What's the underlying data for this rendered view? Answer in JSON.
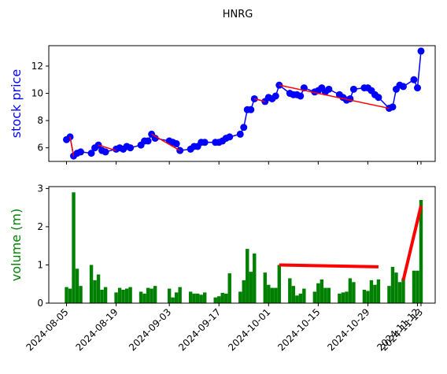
{
  "chart_data": {
    "title": "HNRG",
    "x": [
      "2024-08-05",
      "2024-08-06",
      "2024-08-07",
      "2024-08-08",
      "2024-08-09",
      "2024-08-12",
      "2024-08-13",
      "2024-08-14",
      "2024-08-15",
      "2024-08-16",
      "2024-08-19",
      "2024-08-20",
      "2024-08-21",
      "2024-08-22",
      "2024-08-23",
      "2024-08-26",
      "2024-08-27",
      "2024-08-28",
      "2024-08-29",
      "2024-08-30",
      "2024-09-03",
      "2024-09-04",
      "2024-09-05",
      "2024-09-06",
      "2024-09-09",
      "2024-09-10",
      "2024-09-11",
      "2024-09-12",
      "2024-09-13",
      "2024-09-16",
      "2024-09-17",
      "2024-09-18",
      "2024-09-19",
      "2024-09-20",
      "2024-09-23",
      "2024-09-24",
      "2024-09-25",
      "2024-09-26",
      "2024-09-27",
      "2024-09-30",
      "2024-10-01",
      "2024-10-02",
      "2024-10-03",
      "2024-10-04",
      "2024-10-07",
      "2024-10-08",
      "2024-10-09",
      "2024-10-10",
      "2024-10-11",
      "2024-10-14",
      "2024-10-15",
      "2024-10-16",
      "2024-10-17",
      "2024-10-18",
      "2024-10-21",
      "2024-10-22",
      "2024-10-23",
      "2024-10-24",
      "2024-10-25",
      "2024-10-28",
      "2024-10-29",
      "2024-10-30",
      "2024-10-31",
      "2024-11-01",
      "2024-11-04",
      "2024-11-05",
      "2024-11-06",
      "2024-11-07",
      "2024-11-08",
      "2024-11-11",
      "2024-11-12",
      "2024-11-13"
    ],
    "xlim": [
      "2024-07-31",
      "2024-11-17"
    ],
    "xticks": [
      "2024-08-05",
      "2024-08-19",
      "2024-09-03",
      "2024-09-17",
      "2024-10-01",
      "2024-10-15",
      "2024-10-29",
      "2024-11-12",
      "2024-11-13"
    ],
    "panels": [
      {
        "type": "line",
        "ylabel": "stock price",
        "ylabel_color": "#0000ff",
        "color": "#0000ff",
        "ylim": [
          5,
          13.5
        ],
        "yticks": [
          6,
          8,
          10,
          12
        ],
        "values": [
          6.6,
          6.8,
          5.4,
          5.6,
          5.7,
          5.6,
          6.0,
          6.2,
          5.8,
          5.7,
          5.9,
          6.0,
          5.9,
          6.1,
          6.0,
          6.2,
          6.5,
          6.5,
          7.0,
          6.7,
          6.5,
          6.4,
          6.3,
          5.8,
          5.9,
          6.1,
          6.1,
          6.4,
          6.4,
          6.4,
          6.4,
          6.5,
          6.7,
          6.8,
          7.0,
          7.5,
          8.8,
          8.8,
          9.6,
          9.4,
          9.7,
          9.6,
          9.8,
          10.6,
          10.0,
          9.9,
          9.9,
          9.8,
          10.4,
          10.1,
          10.2,
          10.4,
          10.1,
          10.3,
          9.9,
          9.7,
          9.5,
          9.6,
          10.3,
          10.4,
          10.4,
          10.2,
          9.9,
          9.7,
          8.9,
          9.0,
          10.3,
          10.6,
          10.5,
          11.0,
          10.4,
          13.1
        ],
        "segment_color": "#ff0000",
        "segments": [
          {
            "x": [
              "2024-08-06",
              "2024-08-07"
            ],
            "values": [
              6.8,
              5.4
            ]
          },
          {
            "x": [
              "2024-08-14",
              "2024-08-19"
            ],
            "values": [
              6.2,
              5.8
            ]
          },
          {
            "x": [
              "2024-08-29",
              "2024-09-06"
            ],
            "values": [
              7.0,
              5.8
            ]
          },
          {
            "x": [
              "2024-09-27",
              "2024-09-30"
            ],
            "values": [
              9.6,
              9.4
            ]
          },
          {
            "x": [
              "2024-10-04",
              "2024-11-04"
            ],
            "values": [
              10.6,
              8.9
            ]
          }
        ]
      },
      {
        "type": "bar",
        "ylabel": "volume (m)",
        "ylabel_color": "#008000",
        "color": "#008000",
        "ylim": [
          0,
          3.05
        ],
        "yticks": [
          0,
          1,
          2,
          3
        ],
        "values": [
          0.42,
          0.38,
          2.9,
          0.9,
          0.45,
          1.0,
          0.6,
          0.75,
          0.35,
          0.42,
          0.28,
          0.4,
          0.35,
          0.38,
          0.42,
          0.3,
          0.25,
          0.4,
          0.38,
          0.45,
          0.38,
          0.15,
          0.28,
          0.42,
          0.3,
          0.25,
          0.25,
          0.22,
          0.28,
          0.15,
          0.18,
          0.27,
          0.25,
          0.78,
          0.3,
          0.6,
          1.42,
          0.82,
          1.3,
          0.8,
          0.48,
          0.4,
          0.4,
          1.0,
          0.65,
          0.45,
          0.2,
          0.25,
          0.38,
          0.3,
          0.52,
          0.62,
          0.4,
          0.4,
          0.25,
          0.28,
          0.3,
          0.65,
          0.55,
          0.35,
          0.32,
          0.6,
          0.48,
          0.62,
          0.45,
          0.95,
          0.8,
          0.55,
          0.65,
          0.85,
          0.85,
          2.7
        ],
        "segment_color": "#ff0000",
        "segments": [
          {
            "x": [
              "2024-10-04",
              "2024-11-01"
            ],
            "values": [
              1.0,
              0.95
            ]
          },
          {
            "x": [
              "2024-11-08",
              "2024-11-13"
            ],
            "values": [
              0.6,
              2.55
            ]
          }
        ]
      }
    ]
  }
}
